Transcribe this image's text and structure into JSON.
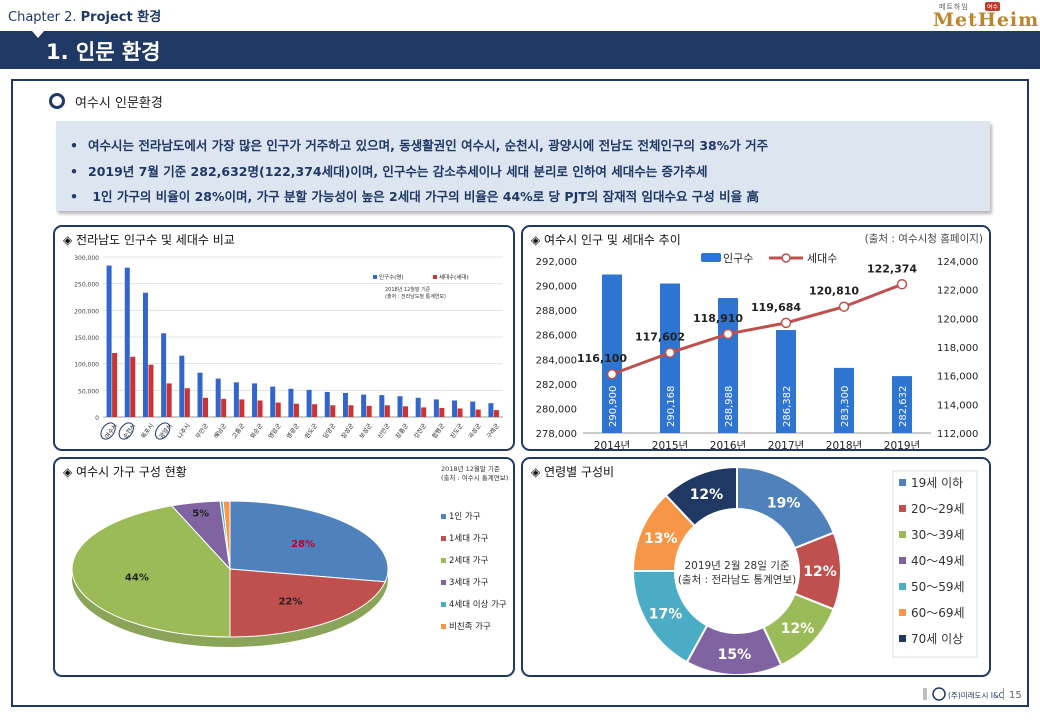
{
  "header": {
    "chapter_prefix": "Chapter 2.",
    "chapter_name": "Project 환경",
    "logo_sub": "메트하임",
    "logo_badge": "여수",
    "logo_main": "MetHeim"
  },
  "page_title": "1. 인문 환경",
  "section": {
    "title": "여수시 인문환경"
  },
  "bullets": [
    "여수시는 전라남도에서 가장 많은 인구가 거주하고 있으며, 동생활권인 여수시, 순천시, 광양시에 전남도 전체인구의 38%가 거주",
    "2019년 7월 기준 282,632명(122,374세대)이며, 인구수는 감소추세이나 세대 분리로 인하여 세대수는 증가추세",
    " 1인 가구의 비율이 28%이며, 가구 분할 가능성이 높은 2세대 가구의 비율은 44%로 당 PJT의 잠재적 임대수요 구성 비율 高"
  ],
  "panels": {
    "jeonnam": {
      "title": "◈ 전라남도 인구수 및 세대수 비교"
    },
    "trend": {
      "title": "◈ 여수시 인구 및 세대수 추이",
      "source": "(출처 : 여수시청 홈페이지)"
    },
    "household": {
      "title": "◈ 여수시 가구 구성 현황"
    },
    "age": {
      "title": "◈ 연령별 구성비"
    }
  },
  "chart_data": [
    {
      "type": "bar",
      "ylim": [
        0,
        300000
      ],
      "yticks": [
        "0",
        "50,000",
        "100,000",
        "150,000",
        "200,000",
        "250,000",
        "300,000"
      ],
      "categories": [
        "여수시",
        "순천시",
        "목포시",
        "광양시",
        "나주시",
        "무안군",
        "해남군",
        "고흥군",
        "화순군",
        "영암군",
        "영광군",
        "완도군",
        "담양군",
        "장성군",
        "보성군",
        "신안군",
        "장흥군",
        "강진군",
        "함평군",
        "진도군",
        "곡성군",
        "구례군"
      ],
      "highlighted": [
        "여수시",
        "순천시",
        "광양시"
      ],
      "series": [
        {
          "name": "인구수(명)",
          "color": "#3366cc",
          "values": [
            284000,
            280000,
            233000,
            157000,
            115000,
            83000,
            72000,
            65000,
            63000,
            57000,
            53000,
            51000,
            47000,
            45000,
            42000,
            41000,
            39000,
            36000,
            33000,
            31000,
            29000,
            26000
          ]
        },
        {
          "name": "세대수(세대)",
          "color": "#cc3333",
          "values": [
            120000,
            113000,
            98000,
            63000,
            54000,
            36000,
            34000,
            33000,
            31000,
            27000,
            25000,
            24000,
            22000,
            22000,
            21000,
            22000,
            20000,
            18000,
            17000,
            16000,
            14000,
            13000
          ]
        }
      ],
      "annotation": [
        "2018년 12월말 기준",
        "(출처 : 전라남도청 통계연보)"
      ]
    },
    {
      "type": "bar",
      "categories": [
        "2014년",
        "2015년",
        "2016년",
        "2017년",
        "2018년",
        "2019년"
      ],
      "ylim": [
        278000,
        292000
      ],
      "y2lim": [
        112000,
        124000
      ],
      "yticks": [
        "278,000",
        "280,000",
        "282,000",
        "284,000",
        "286,000",
        "288,000",
        "290,000",
        "292,000"
      ],
      "y2ticks": [
        "112,000",
        "114,000",
        "116,000",
        "118,000",
        "120,000",
        "122,000",
        "124,000"
      ],
      "series": [
        {
          "name": "인구수",
          "type": "bar",
          "color": "#2e75d1",
          "values": [
            290900,
            290168,
            288988,
            286382,
            283300,
            282632
          ],
          "labels": [
            "290,900",
            "290,168",
            "288,988",
            "286,382",
            "283,300",
            "282,632"
          ]
        },
        {
          "name": "세대수",
          "type": "line",
          "axis": "right",
          "color": "#c0504d",
          "values": [
            116100,
            117602,
            118910,
            119684,
            120810,
            122374
          ],
          "labels": [
            "116,100",
            "117,602",
            "118,910",
            "119,684",
            "120,810",
            "122,374"
          ]
        }
      ]
    },
    {
      "type": "pie",
      "categories": [
        "1인 가구",
        "1세대 가구",
        "2세대 가구",
        "3세대 가구",
        "4세대 이상 가구",
        "비친족 가구"
      ],
      "values": [
        28,
        22,
        44,
        5,
        0.3,
        0.7
      ],
      "labels": [
        "28%",
        "22%",
        "44%",
        "5%"
      ],
      "colors": [
        "#4f81bd",
        "#c0504d",
        "#9bbb59",
        "#8064a2",
        "#4bacc6",
        "#f79646"
      ],
      "annotation": [
        "2018년 12월말 기준",
        "(출처 : 여수시 통계연보)"
      ]
    },
    {
      "type": "pie",
      "variant": "donut",
      "categories": [
        "19세 이하",
        "20～29세",
        "30～39세",
        "40～49세",
        "50～59세",
        "60～69세",
        "70세 이상"
      ],
      "values": [
        19,
        12,
        12,
        15,
        17,
        13,
        12
      ],
      "labels": [
        "19%",
        "12%",
        "12%",
        "15%",
        "17%",
        "13%",
        "12%"
      ],
      "colors": [
        "#4f81bd",
        "#c0504d",
        "#9bbb59",
        "#8064a2",
        "#4bacc6",
        "#f79646",
        "#1f3864"
      ],
      "center_text": [
        "2019년 2월 28일 기준",
        "(출처 : 전라남도 통계연보)"
      ]
    }
  ],
  "footer": {
    "company": "(주)미래도시 I&C",
    "page_number": "15"
  }
}
